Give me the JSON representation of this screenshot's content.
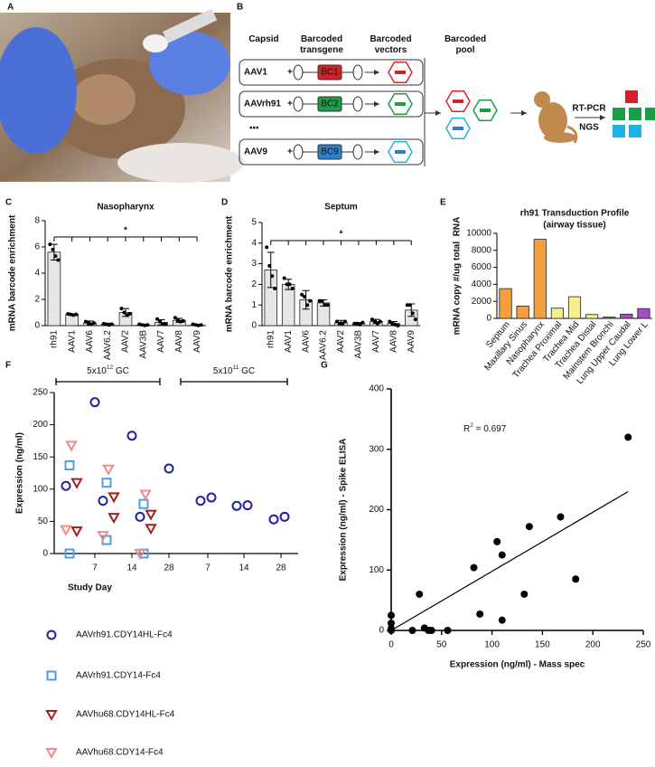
{
  "panel_labels": [
    "A",
    "B",
    "C",
    "D",
    "E",
    "F",
    "G"
  ],
  "diagram": {
    "headers": [
      "Capsid",
      "Barcoded transgene",
      "Barcoded vectors",
      "Barcoded pool"
    ],
    "plus": "+",
    "ellipsis": "•••",
    "rows": [
      {
        "capsid": "AAV1",
        "barcode": "BC1",
        "color": "#e0252b",
        "barcode_color": "#d42027"
      },
      {
        "capsid": "AAVrh91",
        "barcode": "BC2",
        "color": "#1a9e48",
        "barcode_color": "#1a9e48"
      },
      {
        "capsid": "AAV9",
        "barcode": "BC9",
        "color": "#1fb3e5",
        "barcode_color": "#2f80c8"
      }
    ],
    "steps": [
      "RT-PCR",
      "NGS"
    ]
  },
  "chart_data": [
    {
      "type": "bar",
      "title": "Nasopharynx",
      "y_label": "mRNA barcode enrichment",
      "color": "#e6e6e6",
      "categories": [
        "rh91",
        "AAV1",
        "AAV6",
        "AAV6.2",
        "AAV2",
        "AAV3B",
        "AAV7",
        "AAV8",
        "AAV9"
      ],
      "values": [
        5.6,
        0.85,
        0.2,
        0.1,
        1.0,
        0.05,
        0.25,
        0.4,
        0.05
      ],
      "errors": [
        0.6,
        0.05,
        0.15,
        0.08,
        0.3,
        0.05,
        0.2,
        0.15,
        0.05
      ],
      "points": [
        [
          6.2,
          5.8,
          5.3,
          5.0
        ],
        [
          0.9,
          0.85,
          0.8,
          0.85
        ],
        [
          0.3,
          0.2,
          0.1,
          0.2
        ],
        [
          0.15,
          0.1,
          0.05,
          0.1
        ],
        [
          1.3,
          1.0,
          0.8,
          0.9
        ],
        [
          0.1,
          0.05,
          0.02,
          0.05
        ],
        [
          0.5,
          0.3,
          0.1,
          0.1
        ],
        [
          0.6,
          0.4,
          0.3,
          0.35
        ],
        [
          0.1,
          0.05,
          0.02,
          0.05
        ]
      ],
      "significance": "*",
      "ylim": [
        0,
        8
      ],
      "yticks": [
        0,
        2,
        4,
        6,
        8
      ]
    },
    {
      "type": "bar",
      "title": "Septum",
      "y_label": "mRNA barcode enrichment",
      "color": "#e6e6e6",
      "categories": [
        "rh91",
        "AAV1",
        "AAV6",
        "AAV6.2",
        "AAV2",
        "AAV3B",
        "AAV7",
        "AAV8",
        "AAV9"
      ],
      "values": [
        2.7,
        2.0,
        1.25,
        1.1,
        0.15,
        0.1,
        0.2,
        0.1,
        0.75
      ],
      "errors": [
        0.85,
        0.25,
        0.45,
        0.15,
        0.1,
        0.05,
        0.1,
        0.1,
        0.3
      ],
      "points": [
        [
          3.8,
          2.9,
          2.4,
          1.8
        ],
        [
          2.3,
          2.0,
          2.0,
          1.8
        ],
        [
          1.5,
          1.4,
          1.0,
          1.2
        ],
        [
          1.2,
          1.2,
          1.0,
          1.0
        ],
        [
          0.2,
          0.1,
          0.1,
          0.2
        ],
        [
          0.1,
          0.1,
          0.05,
          0.15
        ],
        [
          0.3,
          0.2,
          0.1,
          0.2
        ],
        [
          0.2,
          0.1,
          0.05,
          0.0
        ],
        [
          1.0,
          1.0,
          0.6,
          0.3
        ]
      ],
      "significance": "*",
      "ylim": [
        0,
        5
      ],
      "yticks": [
        0,
        1,
        2,
        3,
        4,
        5
      ]
    },
    {
      "type": "bar",
      "title": "rh91 Transduction Profile",
      "subtitle": "(airway tissue)",
      "y_label": "mRNA copy #/ug total  RNA",
      "categories": [
        "Septum",
        "Maxillary Sinus",
        "Nasopharynx",
        "Trachea Proximal",
        "Trachea Mid",
        "Trachea Distal",
        "Mainstem Bronchi",
        "Lung Upper Caudal",
        "Lung Lower L"
      ],
      "values": [
        3500,
        1450,
        9300,
        1200,
        2550,
        450,
        150,
        500,
        1150
      ],
      "colors": [
        "#f5a03c",
        "#f5a03c",
        "#f5a03c",
        "#f7ee8c",
        "#f7ee8c",
        "#f7ee8c",
        "#a24fc4",
        "#a24fc4",
        "#a24fc4"
      ],
      "ylim": [
        0,
        10000
      ],
      "yticks": [
        0,
        2000,
        4000,
        6000,
        8000,
        10000
      ]
    },
    {
      "type": "strip",
      "y_label": "Expression (ng/ml)",
      "x_label": "Study Day",
      "categories": [
        "7",
        "14",
        "28",
        "7",
        "14",
        "28"
      ],
      "groups": [
        {
          "label": [
            "5x10",
            "12",
            " GC"
          ]
        },
        {
          "label": [
            "5x10",
            "11",
            " GC"
          ]
        }
      ],
      "series": [
        {
          "name": "AAVrh91.CDY14HL-Fc4",
          "color": "#1f1fa8",
          "marker": "circle",
          "values": [
            [
              235,
              105
            ],
            [
              183,
              82
            ],
            [
              132,
              57
            ],
            [
              82,
              87
            ],
            [
              74,
              75
            ],
            [
              53,
              57
            ]
          ]
        },
        {
          "name": "AAVrh91.CDY14-Fc4",
          "color": "#4f9de0",
          "marker": "square",
          "values": [
            [
              137,
              0
            ],
            [
              110,
              21
            ],
            [
              77,
              0
            ],
            null,
            null,
            null
          ]
        },
        {
          "name": "AAVhu68.CDY14HL-Fc4",
          "color": "#a11d22",
          "marker": "triangle-down",
          "values": [
            [
              110,
              35
            ],
            [
              88,
              56
            ],
            [
              61,
              39
            ],
            null,
            null,
            null
          ]
        },
        {
          "name": "AAVhu68.CDY14-Fc4",
          "color": "#f08a8a",
          "marker": "triangle-down",
          "values": [
            [
              168,
              37
            ],
            [
              131,
              28
            ],
            [
              92,
              0
            ],
            null,
            null,
            null
          ]
        }
      ],
      "ylim": [
        0,
        250
      ],
      "yticks": [
        0,
        50,
        100,
        150,
        200,
        250
      ]
    },
    {
      "type": "scatter",
      "x_label": "Expression (ng/ml) - Mass spec",
      "y_label": "Expression (ng/ml) - Spike ELISA",
      "annotation": [
        "R",
        "2",
        " = 0.697"
      ],
      "color": "#000000",
      "x": [
        0,
        0,
        0,
        0,
        21,
        28,
        33,
        37,
        40,
        56,
        82,
        88,
        105,
        110,
        110,
        132,
        137,
        168,
        183,
        235
      ],
      "y": [
        25,
        12,
        3,
        0,
        0,
        60,
        4,
        0,
        0,
        0,
        104,
        27,
        147,
        125,
        17,
        60,
        172,
        188,
        85,
        320
      ],
      "fit": {
        "x": [
          0,
          235
        ],
        "y": [
          0,
          230
        ]
      },
      "xlim": [
        0,
        250
      ],
      "xticks": [
        0,
        50,
        100,
        150,
        200,
        250
      ],
      "ylim": [
        0,
        400
      ],
      "yticks": [
        0,
        100,
        200,
        300,
        400
      ]
    }
  ]
}
